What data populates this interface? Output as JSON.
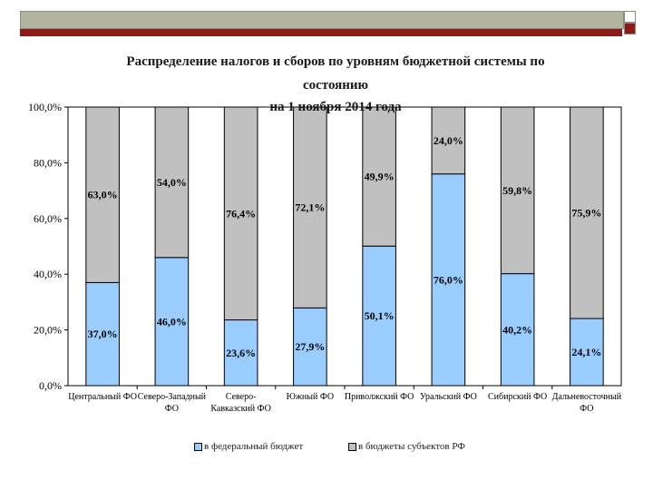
{
  "slide": {
    "colors": {
      "band": "#b3b3a1",
      "line": "#8b1a1a",
      "corner_dark": "#8b1a1a",
      "corner_light": "#ffffff"
    }
  },
  "chart_data": {
    "type": "bar",
    "stacked": true,
    "title_lines": [
      "Распределение налогов и сборов по уровням бюджетной системы по",
      "состоянию",
      "на 1 ноября  2014 года"
    ],
    "categories": [
      [
        "Центральный ФО"
      ],
      [
        "Северо-Западный",
        "ФО"
      ],
      [
        "Северо-",
        "Кавказский ФО"
      ],
      [
        "Южный ФО"
      ],
      [
        "Приволжский ФО"
      ],
      [
        "Уральский ФО"
      ],
      [
        "Сибирский ФО"
      ],
      [
        "Дальневосточный",
        "ФО"
      ]
    ],
    "series": [
      {
        "name": "в федеральный бюджет",
        "color": "#99ccff",
        "values": [
          37.0,
          46.0,
          23.6,
          27.9,
          50.1,
          76.0,
          40.2,
          24.1
        ],
        "labels": [
          "37,0%",
          "46,0%",
          "23,6%",
          "27,9%",
          "50,1%",
          "76,0%",
          "40,2%",
          "24,1%"
        ]
      },
      {
        "name": "в бюджеты субъектов РФ",
        "color": "#c0c0c0",
        "values": [
          63.0,
          54.0,
          76.4,
          72.1,
          49.9,
          24.0,
          59.8,
          75.9
        ],
        "labels": [
          "63,0%",
          "54,0%",
          "76,4%",
          "72,1%",
          "49,9%",
          "24,0%",
          "59,8%",
          "75,9%"
        ]
      }
    ],
    "y_ticks": [
      "0,0%",
      "20,0%",
      "40,0%",
      "60,0%",
      "80,0%",
      "100,0%"
    ],
    "ylim": [
      0,
      100
    ],
    "grid": false,
    "legend_position": "bottom"
  }
}
